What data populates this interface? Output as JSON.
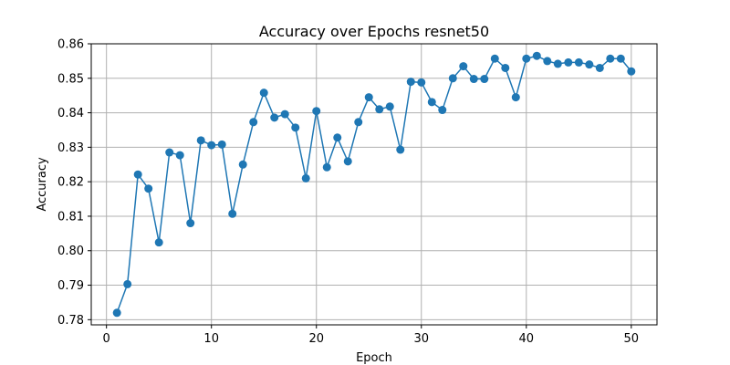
{
  "chart_data": {
    "type": "line",
    "title": "Accuracy over Epochs resnet50",
    "xlabel": "Epoch",
    "ylabel": "Accuracy",
    "xlim": [
      -1.45,
      52.45
    ],
    "ylim": [
      0.7785,
      0.86
    ],
    "xticks": [
      0,
      10,
      20,
      30,
      40,
      50
    ],
    "yticks": [
      0.78,
      0.79,
      0.8,
      0.81,
      0.82,
      0.83,
      0.84,
      0.85,
      0.86
    ],
    "ytick_labels": [
      "0.78",
      "0.79",
      "0.80",
      "0.81",
      "0.82",
      "0.83",
      "0.84",
      "0.85",
      "0.86"
    ],
    "grid": true,
    "color": "#1f77b4",
    "marker": "circle",
    "x": [
      1,
      2,
      3,
      4,
      5,
      6,
      7,
      8,
      9,
      10,
      11,
      12,
      13,
      14,
      15,
      16,
      17,
      18,
      19,
      20,
      21,
      22,
      23,
      24,
      25,
      26,
      27,
      28,
      29,
      30,
      31,
      32,
      33,
      34,
      35,
      36,
      37,
      38,
      39,
      40,
      41,
      42,
      43,
      44,
      45,
      46,
      47,
      48,
      49,
      50
    ],
    "y": [
      0.782,
      0.7903,
      0.8221,
      0.818,
      0.8024,
      0.8285,
      0.8277,
      0.808,
      0.832,
      0.8306,
      0.8308,
      0.8107,
      0.825,
      0.8373,
      0.8458,
      0.8386,
      0.8396,
      0.8357,
      0.821,
      0.8405,
      0.8242,
      0.8328,
      0.8259,
      0.8373,
      0.8445,
      0.841,
      0.8418,
      0.8293,
      0.849,
      0.8488,
      0.8431,
      0.8408,
      0.85,
      0.8535,
      0.8498,
      0.8498,
      0.8557,
      0.853,
      0.8445,
      0.8557,
      0.8565,
      0.855,
      0.8542,
      0.8546,
      0.8546,
      0.854,
      0.853,
      0.8557,
      0.8557,
      0.852
    ]
  }
}
